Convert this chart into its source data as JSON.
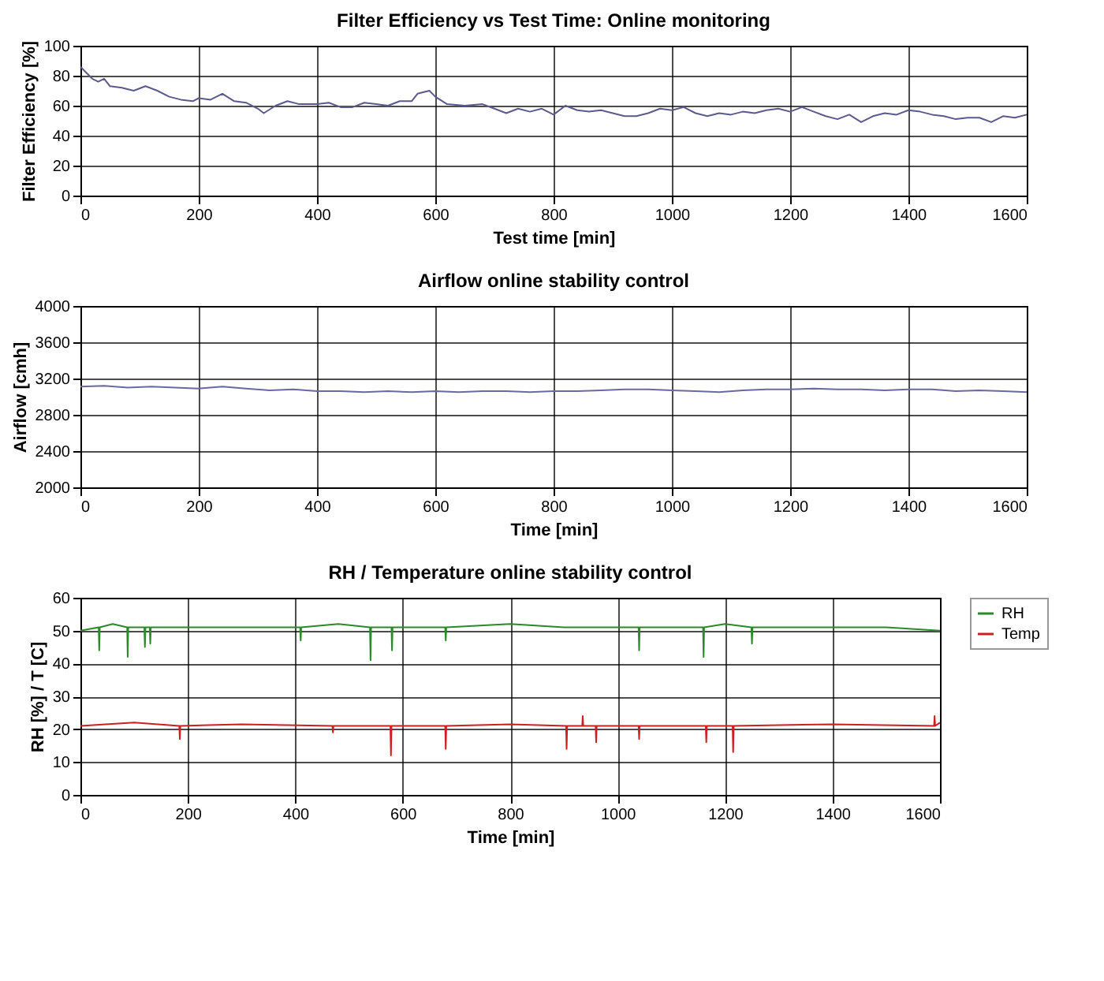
{
  "chart_data": [
    {
      "type": "line",
      "title": "Filter Efficiency vs Test Time: Online monitoring",
      "xlabel": "Test time [min]",
      "ylabel": "Filter Efficiency [%]",
      "xlim": [
        0,
        1600
      ],
      "xticks": [
        0,
        200,
        400,
        600,
        800,
        1000,
        1200,
        1400,
        1600
      ],
      "ylim": [
        0,
        100
      ],
      "yticks": [
        0,
        20,
        40,
        60,
        80,
        100
      ],
      "grid": true,
      "series": [
        {
          "color": "#5a5a8c",
          "x": [
            0,
            10,
            20,
            30,
            40,
            50,
            70,
            90,
            110,
            130,
            150,
            170,
            190,
            200,
            220,
            240,
            260,
            280,
            300,
            310,
            330,
            350,
            370,
            400,
            420,
            440,
            460,
            480,
            500,
            520,
            540,
            560,
            570,
            590,
            600,
            620,
            650,
            680,
            700,
            720,
            740,
            760,
            780,
            800,
            820,
            840,
            860,
            880,
            900,
            920,
            940,
            960,
            980,
            1000,
            1020,
            1040,
            1060,
            1080,
            1100,
            1120,
            1140,
            1160,
            1180,
            1200,
            1220,
            1240,
            1260,
            1280,
            1300,
            1320,
            1340,
            1360,
            1380,
            1400,
            1420,
            1440,
            1460,
            1480,
            1500,
            1520,
            1540,
            1560,
            1580,
            1600
          ],
          "values": [
            86,
            82,
            78,
            76,
            78,
            73,
            72,
            70,
            73,
            70,
            66,
            64,
            63,
            65,
            64,
            68,
            63,
            62,
            58,
            55,
            60,
            63,
            61,
            61,
            62,
            59,
            59,
            62,
            61,
            60,
            63,
            63,
            68,
            70,
            66,
            61,
            60,
            61,
            58,
            55,
            58,
            56,
            58,
            54,
            60,
            57,
            56,
            57,
            55,
            53,
            53,
            55,
            58,
            57,
            59,
            55,
            53,
            55,
            54,
            56,
            55,
            57,
            58,
            56,
            59,
            56,
            53,
            51,
            54,
            49,
            53,
            55,
            54,
            57,
            56,
            54,
            53,
            51,
            52,
            52,
            49,
            53,
            52,
            54
          ]
        }
      ]
    },
    {
      "type": "line",
      "title": "Airflow online stability control",
      "xlabel": "Time [min]",
      "ylabel": "Airflow [cmh]",
      "xlim": [
        0,
        1600
      ],
      "xticks": [
        0,
        200,
        400,
        600,
        800,
        1000,
        1200,
        1400,
        1600
      ],
      "ylim": [
        2000,
        4000
      ],
      "yticks": [
        2000,
        2400,
        2800,
        3200,
        3600,
        4000
      ],
      "grid": true,
      "series": [
        {
          "color": "#6a6aa0",
          "x": [
            0,
            40,
            80,
            120,
            160,
            200,
            240,
            280,
            320,
            360,
            400,
            440,
            480,
            520,
            560,
            600,
            640,
            680,
            720,
            760,
            800,
            840,
            880,
            920,
            960,
            1000,
            1040,
            1080,
            1120,
            1160,
            1200,
            1240,
            1280,
            1320,
            1360,
            1400,
            1440,
            1480,
            1520,
            1560,
            1600
          ],
          "values": [
            3110,
            3120,
            3100,
            3110,
            3100,
            3090,
            3110,
            3090,
            3070,
            3080,
            3060,
            3060,
            3050,
            3060,
            3050,
            3060,
            3050,
            3060,
            3060,
            3050,
            3060,
            3060,
            3070,
            3080,
            3080,
            3070,
            3060,
            3050,
            3070,
            3080,
            3080,
            3090,
            3080,
            3080,
            3070,
            3080,
            3080,
            3060,
            3070,
            3060,
            3050
          ]
        }
      ]
    },
    {
      "type": "line",
      "title": "RH / Temperature online stability control",
      "xlabel": "Time [min]",
      "ylabel": "RH [%] / T [C]",
      "xlim": [
        0,
        1600
      ],
      "xticks": [
        0,
        200,
        400,
        600,
        800,
        1000,
        1200,
        1400,
        1600
      ],
      "ylim": [
        0,
        60
      ],
      "yticks": [
        0,
        10,
        20,
        30,
        40,
        50,
        60
      ],
      "grid": true,
      "legend": "top right",
      "series": [
        {
          "name": "RH",
          "color": "#2a8a2a",
          "x": [
            0,
            34,
            35,
            36,
            60,
            87,
            88,
            89,
            119,
            120,
            121,
            129,
            130,
            131,
            200,
            300,
            409,
            410,
            411,
            480,
            539,
            540,
            541,
            579,
            580,
            581,
            679,
            680,
            681,
            800,
            900,
            1000,
            1039,
            1040,
            1041,
            1100,
            1159,
            1160,
            1161,
            1200,
            1249,
            1250,
            1251,
            1300,
            1400,
            1500,
            1600
          ],
          "values": [
            50,
            51,
            44,
            51,
            52,
            51,
            42,
            51,
            51,
            45,
            51,
            51,
            46,
            51,
            51,
            51,
            51,
            47,
            51,
            52,
            51,
            41,
            51,
            51,
            44,
            51,
            51,
            47,
            51,
            52,
            51,
            51,
            51,
            44,
            51,
            51,
            51,
            42,
            51,
            52,
            51,
            46,
            51,
            51,
            51,
            51,
            50
          ]
        },
        {
          "name": "Temp",
          "color": "#cc2020",
          "x": [
            0,
            100,
            184,
            185,
            186,
            300,
            469,
            470,
            471,
            577,
            578,
            579,
            679,
            680,
            681,
            800,
            904,
            905,
            906,
            934,
            935,
            936,
            959,
            960,
            961,
            1039,
            1040,
            1041,
            1164,
            1165,
            1166,
            1214,
            1215,
            1216,
            1400,
            1589,
            1590,
            1591,
            1600
          ],
          "values": [
            21,
            22,
            21,
            17,
            21,
            21.5,
            21,
            19,
            21,
            21,
            12,
            21,
            21,
            14,
            21,
            21.5,
            21,
            14,
            21,
            21,
            24,
            21,
            21,
            16,
            21,
            21,
            17,
            21,
            21,
            16,
            21,
            21,
            13,
            21,
            21.5,
            21,
            24,
            21,
            22
          ]
        }
      ]
    }
  ]
}
